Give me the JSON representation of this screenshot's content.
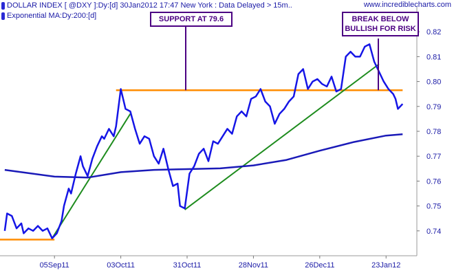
{
  "header": {
    "title": "DOLLAR INDEX [ @DXY ]:Dy:[d]  30Jan2012 17:47 New York  : Data Delayed > 15m..",
    "ma_label": "Exponential MA:Dy:200:[d]",
    "watermark": "www.incrediblecharts.com"
  },
  "annotations": {
    "support": "SUPPORT AT 79.6",
    "break_line1": "BREAK BELOW",
    "break_line2": "BULLISH FOR RISK"
  },
  "colors": {
    "price": "#1515e6",
    "ma": "#1a1ab8",
    "support": "#ff8c00",
    "trend": "#1e8c1e",
    "note": "#4b0082",
    "axis_text": "#1a1aa6"
  },
  "chart_data": {
    "type": "line",
    "title": "DOLLAR INDEX [ @DXY ]:Dy:[d]",
    "ylabel": "",
    "xlabel": "",
    "ylim": [
      0.73,
      0.83
    ],
    "x_range": [
      "2011-08-13",
      "2012-02-05"
    ],
    "y_ticks": [
      0.74,
      0.75,
      0.76,
      0.77,
      0.78,
      0.79,
      0.8,
      0.81,
      0.82
    ],
    "x_ticks": [
      {
        "date": "2011-09-05",
        "label": "05Sep11"
      },
      {
        "date": "2011-10-03",
        "label": "03Oct11"
      },
      {
        "date": "2011-10-31",
        "label": "31Oct11"
      },
      {
        "date": "2011-11-28",
        "label": "28Nov11"
      },
      {
        "date": "2011-12-26",
        "label": "26Dec11"
      },
      {
        "date": "2012-01-23",
        "label": "23Jan12"
      }
    ],
    "series": [
      {
        "name": "DOLLAR INDEX [ @DXY ]",
        "x": [
          "2011-08-15",
          "2011-08-16",
          "2011-08-18",
          "2011-08-20",
          "2011-08-22",
          "2011-08-23",
          "2011-08-25",
          "2011-08-27",
          "2011-08-29",
          "2011-08-31",
          "2011-09-02",
          "2011-09-04",
          "2011-09-06",
          "2011-09-08",
          "2011-09-09",
          "2011-09-11",
          "2011-09-12",
          "2011-09-14",
          "2011-09-16",
          "2011-09-17",
          "2011-09-19",
          "2011-09-21",
          "2011-09-23",
          "2011-09-25",
          "2011-09-26",
          "2011-09-28",
          "2011-09-30",
          "2011-10-01",
          "2011-10-03",
          "2011-10-05",
          "2011-10-07",
          "2011-10-09",
          "2011-10-11",
          "2011-10-13",
          "2011-10-15",
          "2011-10-17",
          "2011-10-19",
          "2011-10-21",
          "2011-10-23",
          "2011-10-25",
          "2011-10-27",
          "2011-10-28",
          "2011-10-30",
          "2011-11-01",
          "2011-11-03",
          "2011-11-05",
          "2011-11-07",
          "2011-11-09",
          "2011-11-11",
          "2011-11-13",
          "2011-11-15",
          "2011-11-17",
          "2011-11-19",
          "2011-11-21",
          "2011-11-23",
          "2011-11-25",
          "2011-11-27",
          "2011-11-29",
          "2011-12-01",
          "2011-12-03",
          "2011-12-05",
          "2011-12-07",
          "2011-12-09",
          "2011-12-11",
          "2011-12-13",
          "2011-12-15",
          "2011-12-17",
          "2011-12-19",
          "2011-12-21",
          "2011-12-23",
          "2011-12-25",
          "2011-12-27",
          "2011-12-29",
          "2011-12-31",
          "2012-01-02",
          "2012-01-04",
          "2012-01-06",
          "2012-01-08",
          "2012-01-10",
          "2012-01-12",
          "2012-01-14",
          "2012-01-16",
          "2012-01-18",
          "2012-01-20",
          "2012-01-22",
          "2012-01-24",
          "2012-01-26",
          "2012-01-27",
          "2012-01-28",
          "2012-01-30"
        ],
        "values": [
          0.74,
          0.747,
          0.746,
          0.741,
          0.743,
          0.739,
          0.741,
          0.74,
          0.742,
          0.74,
          0.741,
          0.737,
          0.739,
          0.744,
          0.75,
          0.757,
          0.755,
          0.763,
          0.77,
          0.766,
          0.762,
          0.769,
          0.774,
          0.778,
          0.777,
          0.781,
          0.778,
          0.782,
          0.797,
          0.789,
          0.788,
          0.781,
          0.775,
          0.778,
          0.777,
          0.77,
          0.767,
          0.773,
          0.765,
          0.758,
          0.759,
          0.75,
          0.749,
          0.763,
          0.766,
          0.771,
          0.773,
          0.768,
          0.776,
          0.775,
          0.778,
          0.781,
          0.779,
          0.786,
          0.788,
          0.786,
          0.793,
          0.794,
          0.797,
          0.792,
          0.79,
          0.783,
          0.787,
          0.789,
          0.792,
          0.794,
          0.803,
          0.805,
          0.797,
          0.8,
          0.801,
          0.799,
          0.798,
          0.802,
          0.796,
          0.797,
          0.81,
          0.812,
          0.81,
          0.81,
          0.814,
          0.815,
          0.808,
          0.804,
          0.8,
          0.797,
          0.795,
          0.793,
          0.789,
          0.791
        ]
      },
      {
        "name": "Exponential MA:Dy:200:[d]",
        "x": [
          "2011-08-15",
          "2011-09-05",
          "2011-09-19",
          "2011-10-03",
          "2011-10-17",
          "2011-10-31",
          "2011-11-14",
          "2011-11-28",
          "2011-12-12",
          "2011-12-26",
          "2012-01-09",
          "2012-01-23",
          "2012-01-30"
        ],
        "values": [
          0.7645,
          0.7618,
          0.7614,
          0.7636,
          0.7645,
          0.7648,
          0.7651,
          0.7663,
          0.7685,
          0.7722,
          0.7756,
          0.7783,
          0.7788
        ]
      }
    ],
    "reference_lines": [
      {
        "type": "horizontal",
        "label": "SUPPORT AT 79.6",
        "y": 0.7965,
        "from": "2011-10-01",
        "to": "2012-01-30"
      },
      {
        "type": "horizontal",
        "y": 0.7365,
        "from": "2011-08-13",
        "to": "2011-09-05"
      }
    ],
    "trendlines": [
      {
        "from": [
          "2011-09-04",
          0.737
        ],
        "to": [
          "2011-10-07",
          0.787
        ]
      },
      {
        "from": [
          "2011-10-30",
          0.7485
        ],
        "to": [
          "2012-01-20",
          0.807
        ]
      }
    ]
  }
}
